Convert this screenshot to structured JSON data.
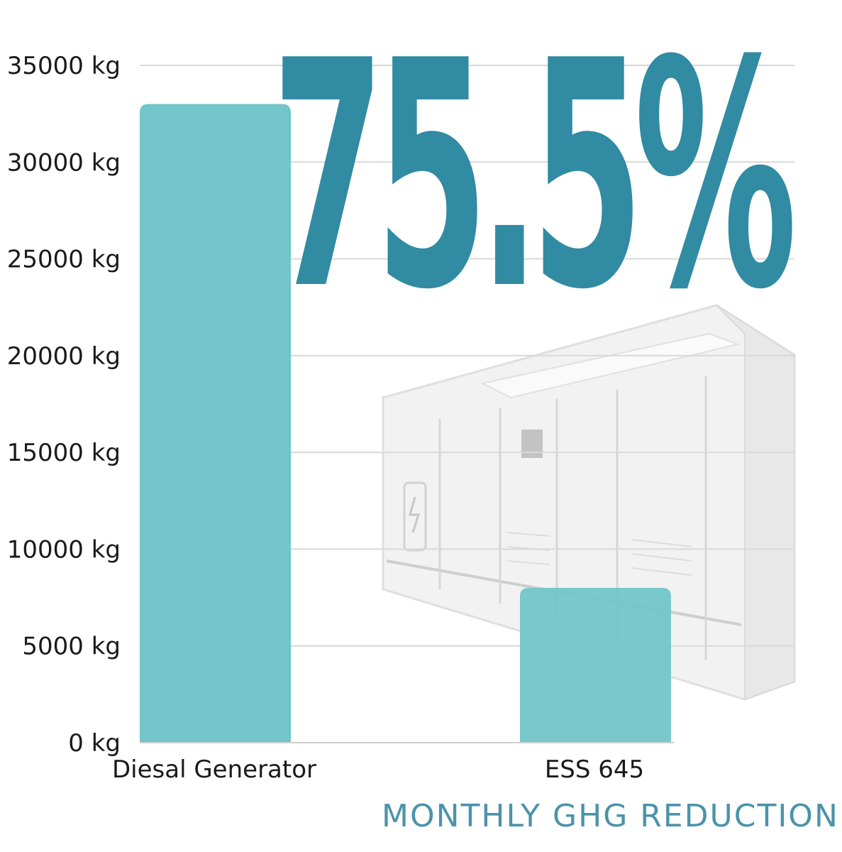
{
  "headline": "75.5%",
  "subtitle": "MONTHLY GHG REDUCTION",
  "colors": {
    "bar": "#72c5c9",
    "headline": "#308ba3",
    "grid": "#d9d9d9",
    "subtitle": "#4b93aa"
  },
  "chart_data": {
    "type": "bar",
    "categories": [
      "Diesal Generator",
      "ESS 645"
    ],
    "values": [
      33000,
      8000
    ],
    "ylim": [
      0,
      35000
    ],
    "yticks": [
      0,
      5000,
      10000,
      15000,
      20000,
      25000,
      30000,
      35000
    ],
    "tick_unit": " kg",
    "grid": true,
    "background_image": "energy-storage-container"
  }
}
